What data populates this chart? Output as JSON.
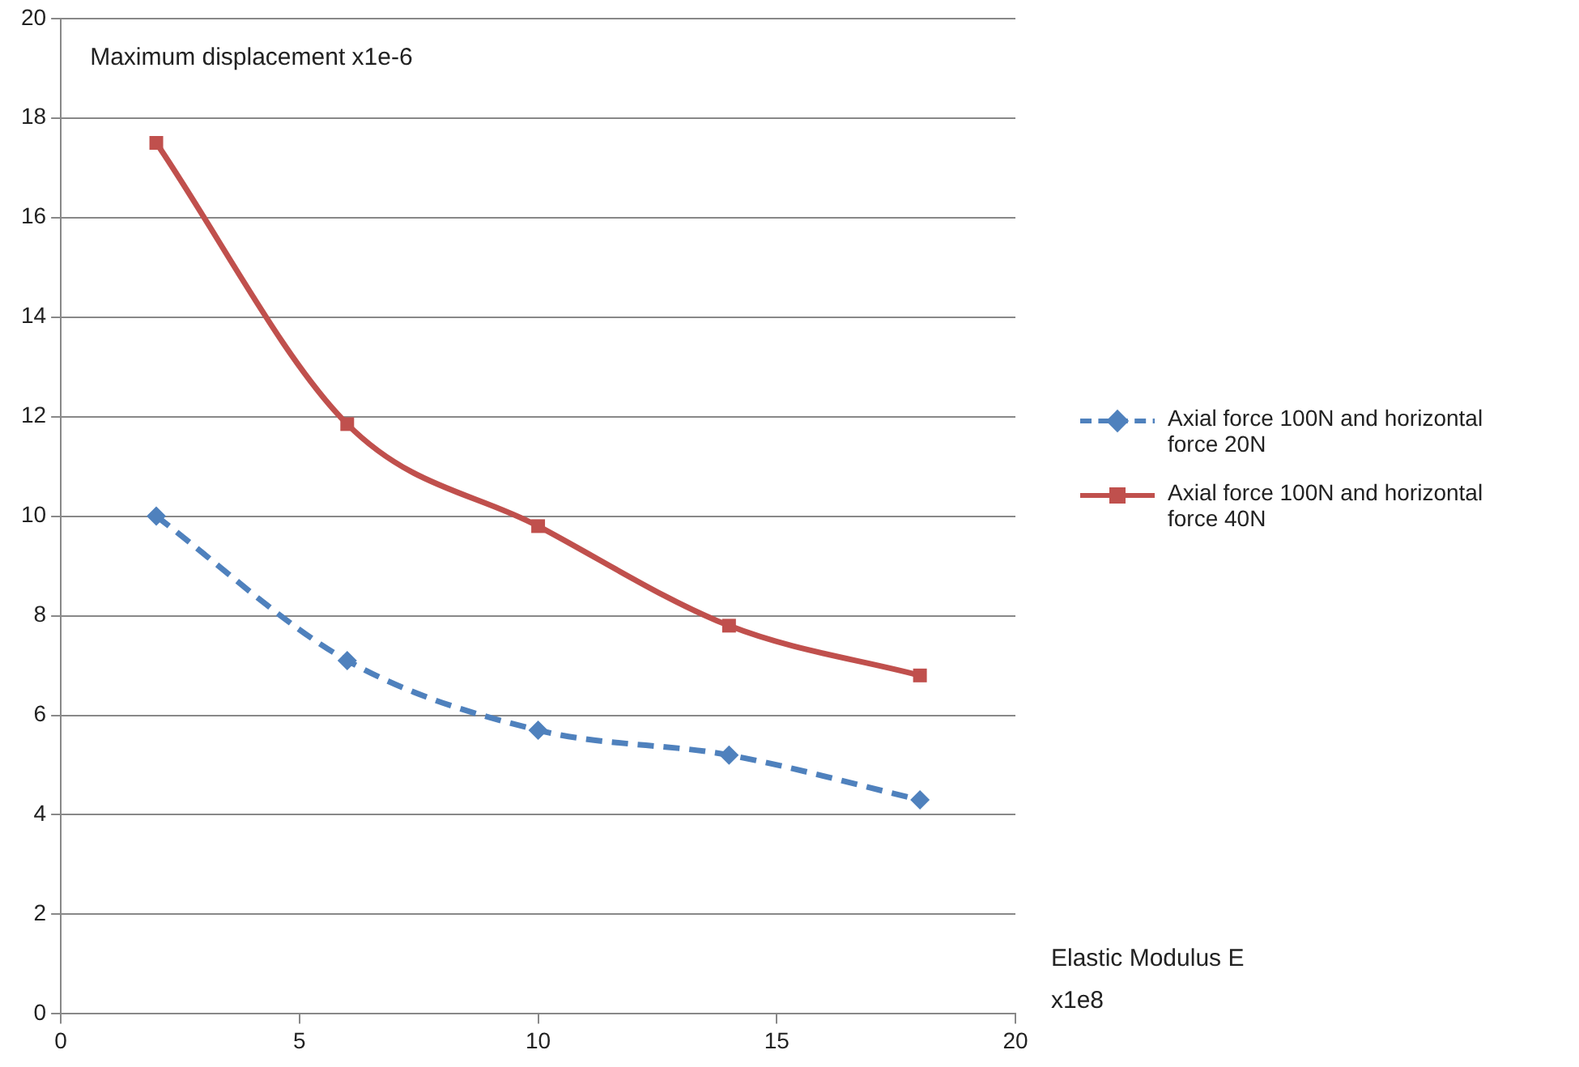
{
  "chart_data": {
    "type": "line",
    "xlabel": "Elastic Modulus E x1e8",
    "ylabel": "Maximum displacement x1e-6",
    "xlim": [
      0,
      20
    ],
    "xticks": [
      0,
      5,
      10,
      15,
      20
    ],
    "ylim": [
      0,
      20
    ],
    "yticks": [
      0,
      2,
      4,
      6,
      8,
      10,
      12,
      14,
      16,
      18,
      20
    ],
    "grid": "y",
    "legend": "right",
    "x": [
      2,
      6,
      10,
      14,
      18
    ],
    "series": [
      {
        "name": "Axial force 100N and horizontal force 20N",
        "color": "#4f81bd",
        "values": [
          10,
          7.1,
          5.7,
          5.2,
          4.3
        ],
        "marker": "diamond",
        "line_style": "dashed"
      },
      {
        "name": "Axial force 100N and horizontal force 40N",
        "color": "#c0504d",
        "values": [
          17.5,
          11.85,
          9.8,
          7.8,
          6.8
        ],
        "marker": "square",
        "line_style": "solid"
      }
    ]
  }
}
